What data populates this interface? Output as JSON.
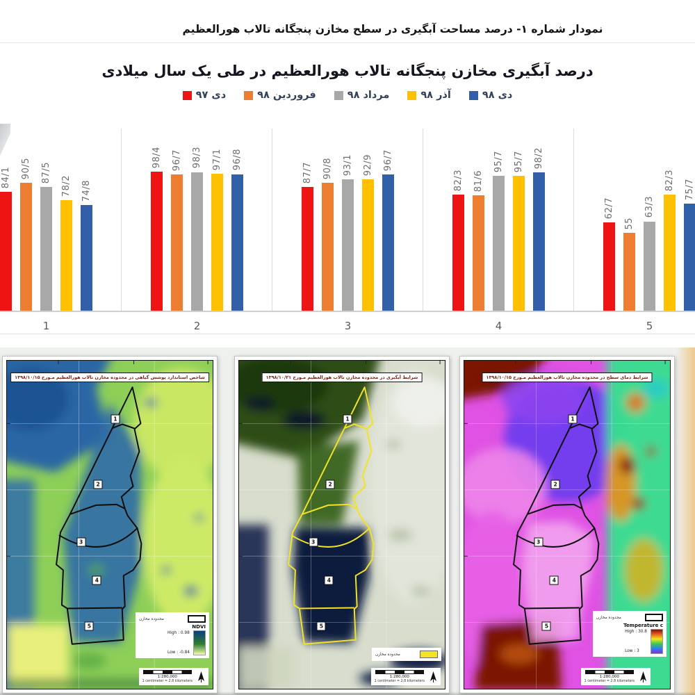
{
  "page": {
    "header_title": "نمودار شماره ۱- درصد مساحت آبگیری در سطح مخازن پنجگانه تالاب هورالعظیم"
  },
  "chart_data": {
    "type": "bar",
    "title": "درصد آبگیری مخازن پنجگانه تالاب هورالعظیم در طی یک سال میلادی",
    "xlabel": "",
    "ylabel": "",
    "ylim": [
      0,
      100
    ],
    "grid": false,
    "legend_position": "top",
    "categories": [
      "1",
      "2",
      "3",
      "4",
      "5"
    ],
    "series": [
      {
        "name": "دی ۹۷",
        "color": "#ee1414",
        "values": [
          84.1,
          98.4,
          87.7,
          82.3,
          62.7
        ],
        "labels": [
          "84/1",
          "98/4",
          "87/7",
          "82/3",
          "62/7"
        ]
      },
      {
        "name": "فروردین ۹۸",
        "color": "#ed7d31",
        "values": [
          90.5,
          96.7,
          90.8,
          81.6,
          55.0
        ],
        "labels": [
          "90/5",
          "96/7",
          "90/8",
          "81/6",
          "55"
        ]
      },
      {
        "name": "مرداد ۹۸",
        "color": "#a8a8a8",
        "values": [
          87.5,
          98.3,
          93.1,
          95.7,
          63.3
        ],
        "labels": [
          "87/5",
          "98/3",
          "93/1",
          "95/7",
          "63/3"
        ]
      },
      {
        "name": "آذر ۹۸",
        "color": "#ffc000",
        "values": [
          78.2,
          97.1,
          92.9,
          95.7,
          82.3
        ],
        "labels": [
          "78/2",
          "97/1",
          "92/9",
          "95/7",
          "82/3"
        ]
      },
      {
        "name": "دی ۹۸",
        "color": "#3160a8",
        "values": [
          74.8,
          96.8,
          96.7,
          98.2,
          75.7
        ],
        "labels": [
          "74/8",
          "96/8",
          "96/7",
          "98/2",
          "75/7"
        ]
      }
    ]
  },
  "maps": [
    {
      "title": "شاخص استاندارد پوشش گیاهی در محدوده مخازن تالاب هورالعظیم مـورخ ۱۳۹۸/۱۰/۱۵",
      "zones": [
        "1",
        "2",
        "3",
        "4",
        "5"
      ],
      "legend": {
        "boundary_label": "محدوده مخازن",
        "ramp_title": "NDVI",
        "high": "High : 0.98",
        "low": "Low : -0.84"
      },
      "scale": {
        "ratio": "1:280,000",
        "note": "1 centimeter = 2.8 kilometers"
      }
    },
    {
      "title": "شرایط آبگیری در محدوده مخازن تالاب هورالعظیم مـورخ ۱۳۹۸/۱۰/۲۱",
      "zones": [
        "1",
        "2",
        "3",
        "4",
        "5"
      ],
      "legend": {
        "boundary_label": "محدوده مخازن"
      },
      "scale": {
        "ratio": "1:280,000",
        "note": "1 centimeter = 2.8 kilometers"
      }
    },
    {
      "title": "شرایط دمای سطح در محدوده مخازن تالاب هورالعظیم مـورخ ۱۳۹۸/۱۰/۱۵",
      "zones": [
        "1",
        "2",
        "3",
        "4",
        "5"
      ],
      "legend": {
        "boundary_label": "محدوده مخازن",
        "ramp_title": "Temperature c",
        "high": "High : 30.8",
        "low": "Low : 3"
      },
      "scale": {
        "ratio": "1:280,000",
        "note": "1 centimeter = 2.8 kilometers"
      }
    }
  ]
}
